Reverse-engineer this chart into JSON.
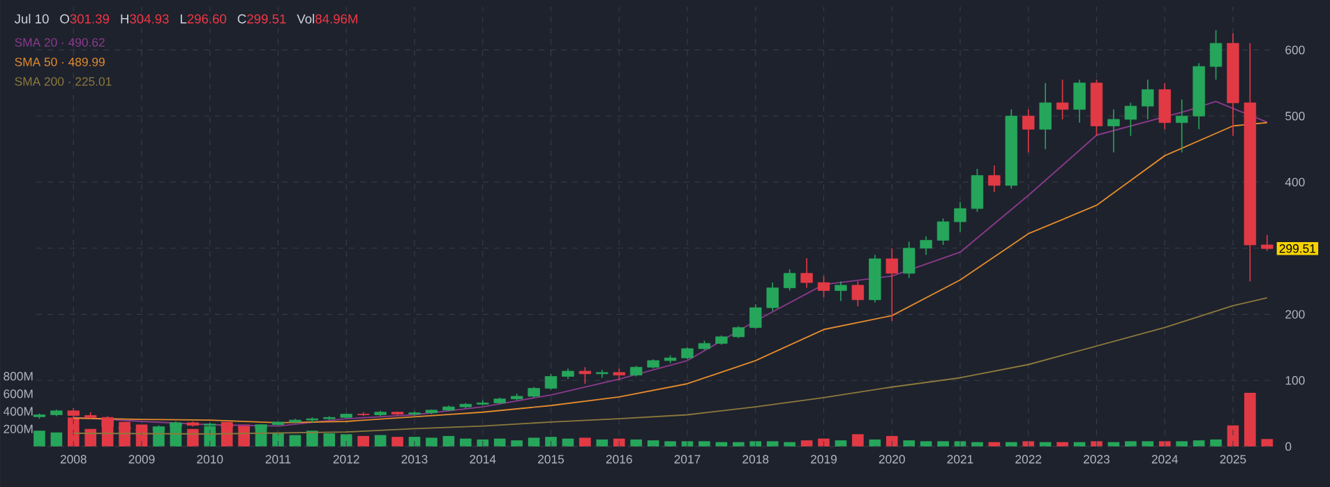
{
  "chart_data": {
    "type": "candlestick",
    "x": [
      "2007-07",
      "2007-10",
      "2008-01",
      "2008-04",
      "2008-07",
      "2008-10",
      "2009-01",
      "2009-04",
      "2009-07",
      "2009-10",
      "2010-01",
      "2010-04",
      "2010-07",
      "2010-10",
      "2011-01",
      "2011-04",
      "2011-07",
      "2011-10",
      "2012-01",
      "2012-04",
      "2012-07",
      "2012-10",
      "2013-01",
      "2013-04",
      "2013-07",
      "2013-10",
      "2014-01",
      "2014-04",
      "2014-07",
      "2014-10",
      "2015-01",
      "2015-04",
      "2015-07",
      "2015-10",
      "2016-01",
      "2016-04",
      "2016-07",
      "2016-10",
      "2017-01",
      "2017-04",
      "2017-07",
      "2017-10",
      "2018-01",
      "2018-04",
      "2018-07",
      "2018-10",
      "2019-01",
      "2019-04",
      "2019-07",
      "2019-10",
      "2020-01",
      "2020-04",
      "2020-07",
      "2020-10",
      "2021-01",
      "2021-04",
      "2021-07",
      "2021-10",
      "2022-01",
      "2022-04",
      "2022-07",
      "2022-10",
      "2023-01",
      "2023-04",
      "2023-07",
      "2023-10",
      "2024-01",
      "2024-04",
      "2024-07",
      "2024-10",
      "2025-01",
      "2025-04",
      "2025-07"
    ],
    "ohlc": [
      [
        45,
        50,
        42,
        48
      ],
      [
        48,
        56,
        46,
        54
      ],
      [
        54,
        58,
        44,
        47
      ],
      [
        47,
        52,
        42,
        44
      ],
      [
        44,
        46,
        28,
        30
      ],
      [
        30,
        34,
        22,
        26
      ],
      [
        26,
        30,
        20,
        24
      ],
      [
        24,
        32,
        23,
        30
      ],
      [
        30,
        38,
        28,
        36
      ],
      [
        36,
        38,
        30,
        32
      ],
      [
        32,
        36,
        28,
        34
      ],
      [
        34,
        36,
        27,
        29
      ],
      [
        29,
        32,
        26,
        28
      ],
      [
        28,
        34,
        27,
        33
      ],
      [
        33,
        38,
        32,
        37
      ],
      [
        37,
        42,
        35,
        40
      ],
      [
        40,
        44,
        36,
        42
      ],
      [
        42,
        46,
        40,
        44
      ],
      [
        44,
        50,
        43,
        49
      ],
      [
        49,
        52,
        46,
        48
      ],
      [
        48,
        54,
        46,
        52
      ],
      [
        52,
        53,
        47,
        49
      ],
      [
        49,
        53,
        47,
        51
      ],
      [
        51,
        56,
        49,
        55
      ],
      [
        55,
        62,
        54,
        60
      ],
      [
        60,
        66,
        58,
        64
      ],
      [
        64,
        70,
        62,
        66
      ],
      [
        66,
        74,
        64,
        72
      ],
      [
        72,
        80,
        70,
        76
      ],
      [
        76,
        90,
        74,
        88
      ],
      [
        88,
        110,
        86,
        106
      ],
      [
        106,
        118,
        102,
        114
      ],
      [
        114,
        120,
        95,
        110
      ],
      [
        110,
        116,
        104,
        112
      ],
      [
        112,
        118,
        100,
        108
      ],
      [
        108,
        122,
        106,
        120
      ],
      [
        120,
        132,
        118,
        130
      ],
      [
        130,
        138,
        126,
        134
      ],
      [
        134,
        150,
        132,
        148
      ],
      [
        148,
        160,
        146,
        156
      ],
      [
        156,
        168,
        154,
        166
      ],
      [
        166,
        182,
        164,
        180
      ],
      [
        180,
        215,
        178,
        210
      ],
      [
        210,
        248,
        205,
        240
      ],
      [
        240,
        268,
        236,
        262
      ],
      [
        262,
        285,
        240,
        248
      ],
      [
        248,
        258,
        226,
        236
      ],
      [
        236,
        250,
        220,
        244
      ],
      [
        244,
        250,
        212,
        222
      ],
      [
        222,
        290,
        218,
        284
      ],
      [
        284,
        300,
        190,
        262
      ],
      [
        262,
        310,
        255,
        300
      ],
      [
        300,
        318,
        290,
        312
      ],
      [
        312,
        345,
        305,
        340
      ],
      [
        340,
        370,
        325,
        360
      ],
      [
        360,
        420,
        355,
        410
      ],
      [
        410,
        425,
        385,
        395
      ],
      [
        395,
        510,
        390,
        500
      ],
      [
        500,
        510,
        445,
        480
      ],
      [
        480,
        550,
        450,
        520
      ],
      [
        520,
        555,
        495,
        510
      ],
      [
        510,
        555,
        490,
        550
      ],
      [
        550,
        555,
        470,
        485
      ],
      [
        485,
        510,
        445,
        495
      ],
      [
        495,
        520,
        470,
        515
      ],
      [
        515,
        555,
        495,
        540
      ],
      [
        540,
        550,
        480,
        490
      ],
      [
        490,
        525,
        445,
        500
      ],
      [
        500,
        580,
        480,
        575
      ],
      [
        575,
        630,
        555,
        610
      ],
      [
        610,
        625,
        470,
        520
      ],
      [
        520,
        610,
        250,
        305
      ],
      [
        305,
        320,
        296,
        299.51
      ]
    ],
    "colors": [
      "#26a65b",
      "#26a65b",
      "#e23a45",
      "#e23a45",
      "#e23a45",
      "#e23a45",
      "#e23a45",
      "#26a65b",
      "#26a65b",
      "#e23a45",
      "#26a65b",
      "#e23a45",
      "#e23a45",
      "#26a65b",
      "#26a65b",
      "#26a65b",
      "#26a65b",
      "#26a65b",
      "#26a65b",
      "#e23a45",
      "#26a65b",
      "#e23a45",
      "#26a65b",
      "#26a65b",
      "#26a65b",
      "#26a65b",
      "#26a65b",
      "#26a65b",
      "#26a65b",
      "#26a65b",
      "#26a65b",
      "#26a65b",
      "#e23a45",
      "#26a65b",
      "#e23a45",
      "#26a65b",
      "#26a65b",
      "#26a65b",
      "#26a65b",
      "#26a65b",
      "#26a65b",
      "#26a65b",
      "#26a65b",
      "#26a65b",
      "#26a65b",
      "#e23a45",
      "#e23a45",
      "#26a65b",
      "#e23a45",
      "#26a65b",
      "#e23a45",
      "#26a65b",
      "#26a65b",
      "#26a65b",
      "#26a65b",
      "#26a65b",
      "#e23a45",
      "#26a65b",
      "#e23a45",
      "#26a65b",
      "#e23a45",
      "#26a65b",
      "#e23a45",
      "#26a65b",
      "#26a65b",
      "#26a65b",
      "#e23a45",
      "#26a65b",
      "#26a65b",
      "#26a65b",
      "#e23a45",
      "#e23a45",
      "#e23a45"
    ],
    "series": [
      {
        "type": "bar",
        "axis": "y2",
        "values": [
          180,
          160,
          330,
          200,
          300,
          280,
          250,
          220,
          260,
          200,
          230,
          280,
          250,
          220,
          150,
          130,
          180,
          150,
          140,
          120,
          130,
          110,
          110,
          100,
          120,
          90,
          80,
          90,
          70,
          100,
          110,
          90,
          100,
          80,
          90,
          80,
          70,
          60,
          60,
          60,
          50,
          50,
          60,
          60,
          50,
          70,
          90,
          70,
          140,
          80,
          120,
          70,
          60,
          60,
          60,
          50,
          50,
          50,
          60,
          50,
          50,
          50,
          60,
          50,
          60,
          60,
          60,
          60,
          70,
          80,
          240,
          610,
          85
        ],
        "colors": [
          "#26a65b",
          "#26a65b",
          "#e23a45",
          "#e23a45",
          "#e23a45",
          "#e23a45",
          "#e23a45",
          "#26a65b",
          "#26a65b",
          "#e23a45",
          "#26a65b",
          "#e23a45",
          "#e23a45",
          "#26a65b",
          "#26a65b",
          "#26a65b",
          "#26a65b",
          "#26a65b",
          "#26a65b",
          "#e23a45",
          "#26a65b",
          "#e23a45",
          "#26a65b",
          "#26a65b",
          "#26a65b",
          "#26a65b",
          "#26a65b",
          "#26a65b",
          "#26a65b",
          "#26a65b",
          "#26a65b",
          "#26a65b",
          "#e23a45",
          "#26a65b",
          "#e23a45",
          "#26a65b",
          "#26a65b",
          "#26a65b",
          "#26a65b",
          "#26a65b",
          "#26a65b",
          "#26a65b",
          "#26a65b",
          "#26a65b",
          "#26a65b",
          "#e23a45",
          "#e23a45",
          "#26a65b",
          "#e23a45",
          "#26a65b",
          "#e23a45",
          "#26a65b",
          "#26a65b",
          "#26a65b",
          "#26a65b",
          "#26a65b",
          "#e23a45",
          "#26a65b",
          "#e23a45",
          "#26a65b",
          "#e23a45",
          "#26a65b",
          "#e23a45",
          "#26a65b",
          "#26a65b",
          "#26a65b",
          "#e23a45",
          "#26a65b",
          "#26a65b",
          "#26a65b",
          "#e23a45",
          "#e23a45",
          "#e23a45"
        ]
      },
      {
        "type": "line",
        "name": "SMA 20 · 490.62",
        "color": "#8a3a8c",
        "x": [
          "2008-01",
          "2009-01",
          "2010-01",
          "2011-01",
          "2012-01",
          "2013-01",
          "2014-01",
          "2015-01",
          "2016-01",
          "2017-01",
          "2018-01",
          "2019-01",
          "2020-01",
          "2021-01",
          "2022-01",
          "2023-01",
          "2024-05",
          "2024-10",
          "2025-07"
        ],
        "values": [
          44,
          38,
          33,
          31,
          42,
          48,
          60,
          78,
          102,
          130,
          190,
          245,
          258,
          294,
          380,
          471,
          508,
          522,
          490.62
        ]
      },
      {
        "type": "line",
        "name": "SMA 50 · 489.99",
        "color": "#e38b2c",
        "x": [
          "2008-01",
          "2009-01",
          "2010-01",
          "2011-01",
          "2012-01",
          "2013-01",
          "2014-01",
          "2015-01",
          "2016-01",
          "2017-01",
          "2018-01",
          "2019-01",
          "2020-01",
          "2021-01",
          "2022-01",
          "2023-01",
          "2024-01",
          "2025-01",
          "2025-07"
        ],
        "values": [
          43,
          41,
          40,
          36,
          38,
          45,
          52,
          62,
          75,
          95,
          130,
          177,
          198,
          252,
          322,
          365,
          440,
          485,
          489.99
        ]
      },
      {
        "type": "line",
        "name": "SMA 200 · 225.01",
        "color": "#8c7a3c",
        "x": [
          "2008-01",
          "2010-01",
          "2012-01",
          "2013-01",
          "2014-01",
          "2015-01",
          "2016-01",
          "2017-01",
          "2018-01",
          "2019-01",
          "2020-01",
          "2021-01",
          "2022-01",
          "2023-01",
          "2024-01",
          "2025-01",
          "2025-07"
        ],
        "values": [
          20,
          19,
          22,
          27,
          31,
          37,
          42,
          48,
          60,
          74,
          90,
          104,
          124,
          152,
          180,
          213,
          225.01
        ]
      }
    ],
    "xlim": [
      "2007-06-15",
      "2025-08-01"
    ],
    "xticks": [
      "2008",
      "2009",
      "2010",
      "2011",
      "2012",
      "2013",
      "2014",
      "2015",
      "2016",
      "2017",
      "2018",
      "2019",
      "2020",
      "2021",
      "2022",
      "2023",
      "2024",
      "2025"
    ],
    "ylim": [
      0,
      665
    ],
    "yticks": [
      0,
      100,
      200,
      {
        "value": 300,
        "label": null
      },
      400,
      500,
      600
    ],
    "y2lim": [
      0,
      5000
    ],
    "y2ticks": [
      {
        "value": 200,
        "label": "200M"
      },
      {
        "value": 400,
        "label": "400M"
      },
      {
        "value": 600,
        "label": "600M"
      },
      {
        "value": 800,
        "label": "800M"
      }
    ],
    "grid": true,
    "legend": "top left",
    "annotations": [
      "Jul 10",
      "O",
      "301.39",
      "H",
      "304.93",
      "L",
      "296.60",
      "C",
      "299.51",
      "Vol",
      "84.96M",
      {
        "text": "299.51",
        "x": "2025-07",
        "y": 299.51
      }
    ]
  }
}
